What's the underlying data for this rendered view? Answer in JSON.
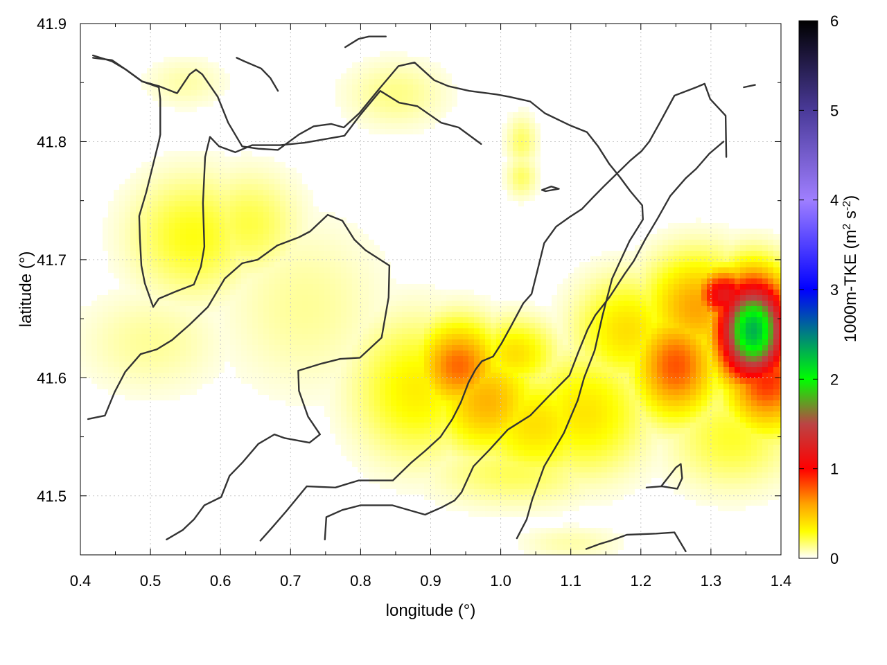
{
  "chart_data": {
    "type": "heatmap",
    "title": "",
    "xlabel": "longitude (°)",
    "ylabel": "latitude (°)",
    "colorbar_label": "1000m-TKE (m² s⁻²)",
    "colorbar_label_parts": {
      "prefix": "1000m-TKE (m",
      "sup1": "2",
      "mid": " s",
      "sup2": "-2",
      "suffix": ")"
    },
    "xlim": [
      0.4,
      1.4
    ],
    "ylim": [
      41.45,
      41.9
    ],
    "zlim": [
      0,
      6
    ],
    "x_ticks": [
      0.4,
      0.5,
      0.6,
      0.7,
      0.8,
      0.9,
      1.0,
      1.1,
      1.2,
      1.3,
      1.4
    ],
    "x_tick_labels": [
      "0.4",
      "0.5",
      "0.6",
      "0.7",
      "0.8",
      "0.9",
      "1.0",
      "1.1",
      "1.2",
      "1.3",
      "1.4"
    ],
    "y_ticks": [
      41.5,
      41.6,
      41.7,
      41.8,
      41.9
    ],
    "y_tick_labels": [
      "41.5",
      "41.6",
      "41.7",
      "41.8",
      "41.9"
    ],
    "colorbar_ticks": [
      0,
      1,
      2,
      3,
      4,
      5,
      6
    ],
    "colorbar_tick_labels": [
      "0",
      "1",
      "2",
      "3",
      "4",
      "5",
      "6"
    ],
    "grid": true,
    "palette": [
      {
        "v": 0.0,
        "color": "#ffffff"
      },
      {
        "v": 0.3,
        "color": "#ffff00"
      },
      {
        "v": 0.6,
        "color": "#ffa500"
      },
      {
        "v": 1.0,
        "color": "#ff0000"
      },
      {
        "v": 1.5,
        "color": "#bb4444"
      },
      {
        "v": 2.0,
        "color": "#00ff00"
      },
      {
        "v": 3.0,
        "color": "#0000ff"
      },
      {
        "v": 4.0,
        "color": "#9f7fff"
      },
      {
        "v": 5.0,
        "color": "#4a3a99"
      },
      {
        "v": 6.0,
        "color": "#000000"
      }
    ],
    "tke_blobs": [
      {
        "x": 0.56,
        "y": 41.72,
        "sx": 0.06,
        "sy": 0.035,
        "v": 0.28
      },
      {
        "x": 0.64,
        "y": 41.73,
        "sx": 0.05,
        "sy": 0.03,
        "v": 0.22
      },
      {
        "x": 0.5,
        "y": 41.63,
        "sx": 0.07,
        "sy": 0.03,
        "v": 0.12
      },
      {
        "x": 0.72,
        "y": 41.66,
        "sx": 0.08,
        "sy": 0.05,
        "v": 0.12
      },
      {
        "x": 0.85,
        "y": 41.84,
        "sx": 0.05,
        "sy": 0.02,
        "v": 0.14
      },
      {
        "x": 0.55,
        "y": 41.85,
        "sx": 0.04,
        "sy": 0.015,
        "v": 0.1
      },
      {
        "x": 1.03,
        "y": 41.8,
        "sx": 0.015,
        "sy": 0.015,
        "v": 0.18
      },
      {
        "x": 1.03,
        "y": 41.77,
        "sx": 0.015,
        "sy": 0.012,
        "v": 0.18
      },
      {
        "x": 0.88,
        "y": 41.59,
        "sx": 0.06,
        "sy": 0.04,
        "v": 0.35
      },
      {
        "x": 0.94,
        "y": 41.61,
        "sx": 0.04,
        "sy": 0.025,
        "v": 0.75
      },
      {
        "x": 0.98,
        "y": 41.58,
        "sx": 0.05,
        "sy": 0.03,
        "v": 0.55
      },
      {
        "x": 1.02,
        "y": 41.62,
        "sx": 0.04,
        "sy": 0.02,
        "v": 0.4
      },
      {
        "x": 1.05,
        "y": 41.56,
        "sx": 0.06,
        "sy": 0.03,
        "v": 0.4
      },
      {
        "x": 1.12,
        "y": 41.57,
        "sx": 0.06,
        "sy": 0.035,
        "v": 0.38
      },
      {
        "x": 1.02,
        "y": 41.52,
        "sx": 0.08,
        "sy": 0.02,
        "v": 0.2
      },
      {
        "x": 1.18,
        "y": 41.64,
        "sx": 0.05,
        "sy": 0.03,
        "v": 0.4
      },
      {
        "x": 1.25,
        "y": 41.61,
        "sx": 0.04,
        "sy": 0.03,
        "v": 0.8
      },
      {
        "x": 1.28,
        "y": 41.66,
        "sx": 0.05,
        "sy": 0.03,
        "v": 0.6
      },
      {
        "x": 1.32,
        "y": 41.67,
        "sx": 0.03,
        "sy": 0.015,
        "v": 1.2
      },
      {
        "x": 1.36,
        "y": 41.64,
        "sx": 0.035,
        "sy": 0.03,
        "v": 2.3
      },
      {
        "x": 1.38,
        "y": 41.6,
        "sx": 0.04,
        "sy": 0.03,
        "v": 0.9
      },
      {
        "x": 1.33,
        "y": 41.55,
        "sx": 0.06,
        "sy": 0.03,
        "v": 0.25
      },
      {
        "x": 1.1,
        "y": 41.46,
        "sx": 0.05,
        "sy": 0.01,
        "v": 0.1
      }
    ],
    "ridge_lines": [
      [
        [
          0.418,
          41.873
        ],
        [
          0.445,
          41.868
        ],
        [
          0.465,
          41.861
        ],
        [
          0.488,
          41.851
        ],
        [
          0.512,
          41.847
        ],
        [
          0.538,
          41.841
        ],
        [
          0.556,
          41.857
        ],
        [
          0.565,
          41.861
        ],
        [
          0.574,
          41.857
        ],
        [
          0.596,
          41.838
        ],
        [
          0.611,
          41.816
        ],
        [
          0.631,
          41.796
        ],
        [
          0.654,
          41.794
        ],
        [
          0.682,
          41.793
        ],
        [
          0.712,
          41.806
        ],
        [
          0.733,
          41.813
        ],
        [
          0.758,
          41.815
        ],
        [
          0.776,
          41.812
        ],
        [
          0.798,
          41.824
        ],
        [
          0.827,
          41.845
        ],
        [
          0.854,
          41.864
        ],
        [
          0.877,
          41.867
        ],
        [
          0.905,
          41.852
        ],
        [
          0.925,
          41.847
        ],
        [
          0.955,
          41.843
        ],
        [
          0.994,
          41.84
        ],
        [
          1.012,
          41.838
        ],
        [
          1.042,
          41.834
        ],
        [
          1.063,
          41.824
        ],
        [
          1.098,
          41.814
        ],
        [
          1.123,
          41.808
        ],
        [
          1.139,
          41.796
        ],
        [
          1.155,
          41.781
        ],
        [
          1.17,
          41.77
        ],
        [
          1.185,
          41.758
        ],
        [
          1.202,
          41.746
        ],
        [
          1.203,
          41.734
        ],
        [
          1.184,
          41.716
        ],
        [
          1.159,
          41.684
        ],
        [
          1.145,
          41.652
        ],
        [
          1.134,
          41.623
        ],
        [
          1.119,
          41.6
        ],
        [
          1.11,
          41.581
        ],
        [
          1.09,
          41.553
        ],
        [
          1.062,
          41.525
        ],
        [
          1.045,
          41.497
        ],
        [
          1.037,
          41.48
        ],
        [
          1.023,
          41.464
        ]
      ],
      [
        [
          0.418,
          41.871
        ],
        [
          0.445,
          41.869
        ],
        [
          0.465,
          41.861
        ],
        [
          0.488,
          41.851
        ],
        [
          0.512,
          41.846
        ],
        [
          0.514,
          41.836
        ],
        [
          0.514,
          41.806
        ],
        [
          0.512,
          41.8
        ],
        [
          0.494,
          41.757
        ],
        [
          0.484,
          41.737
        ],
        [
          0.485,
          41.718
        ],
        [
          0.487,
          41.695
        ],
        [
          0.492,
          41.68
        ],
        [
          0.504,
          41.66
        ],
        [
          0.512,
          41.667
        ],
        [
          0.536,
          41.673
        ],
        [
          0.562,
          41.679
        ],
        [
          0.572,
          41.694
        ],
        [
          0.577,
          41.711
        ],
        [
          0.575,
          41.748
        ],
        [
          0.578,
          41.787
        ],
        [
          0.585,
          41.804
        ],
        [
          0.598,
          41.796
        ],
        [
          0.621,
          41.791
        ],
        [
          0.645,
          41.797
        ],
        [
          0.685,
          41.797
        ],
        [
          0.72,
          41.799
        ],
        [
          0.777,
          41.805
        ],
        [
          0.8,
          41.823
        ],
        [
          0.828,
          41.843
        ],
        [
          0.855,
          41.833
        ],
        [
          0.881,
          41.83
        ],
        [
          0.915,
          41.816
        ],
        [
          0.94,
          41.812
        ],
        [
          0.972,
          41.798
        ]
      ],
      [
        [
          0.411,
          41.565
        ],
        [
          0.435,
          41.568
        ],
        [
          0.449,
          41.588
        ],
        [
          0.464,
          41.605
        ],
        [
          0.486,
          41.62
        ],
        [
          0.509,
          41.624
        ],
        [
          0.531,
          41.632
        ],
        [
          0.556,
          41.645
        ],
        [
          0.582,
          41.66
        ],
        [
          0.606,
          41.684
        ],
        [
          0.631,
          41.697
        ],
        [
          0.653,
          41.7
        ],
        [
          0.681,
          41.712
        ],
        [
          0.712,
          41.719
        ],
        [
          0.728,
          41.724
        ],
        [
          0.753,
          41.738
        ],
        [
          0.774,
          41.733
        ],
        [
          0.791,
          41.717
        ],
        [
          0.807,
          41.708
        ],
        [
          0.841,
          41.695
        ],
        [
          0.84,
          41.668
        ],
        [
          0.83,
          41.634
        ],
        [
          0.799,
          41.617
        ],
        [
          0.771,
          41.616
        ],
        [
          0.744,
          41.612
        ],
        [
          0.711,
          41.606
        ],
        [
          0.712,
          41.589
        ],
        [
          0.725,
          41.567
        ],
        [
          0.742,
          41.552
        ],
        [
          0.727,
          41.545
        ],
        [
          0.691,
          41.549
        ],
        [
          0.677,
          41.552
        ],
        [
          0.654,
          41.544
        ],
        [
          0.631,
          41.528
        ],
        [
          0.613,
          41.517
        ],
        [
          0.601,
          41.499
        ],
        [
          0.577,
          41.492
        ],
        [
          0.562,
          41.48
        ],
        [
          0.546,
          41.471
        ],
        [
          0.523,
          41.463
        ]
      ],
      [
        [
          0.657,
          41.462
        ],
        [
          0.675,
          41.474
        ],
        [
          0.694,
          41.487
        ],
        [
          0.723,
          41.508
        ],
        [
          0.764,
          41.507
        ],
        [
          0.797,
          41.513
        ],
        [
          0.846,
          41.513
        ],
        [
          0.872,
          41.528
        ],
        [
          0.892,
          41.538
        ],
        [
          0.914,
          41.55
        ],
        [
          0.931,
          41.565
        ],
        [
          0.943,
          41.579
        ],
        [
          0.954,
          41.596
        ],
        [
          0.964,
          41.607
        ],
        [
          0.973,
          41.614
        ],
        [
          0.989,
          41.618
        ],
        [
          1.001,
          41.629
        ],
        [
          1.014,
          41.643
        ],
        [
          1.032,
          41.663
        ],
        [
          1.044,
          41.671
        ],
        [
          1.052,
          41.69
        ],
        [
          1.062,
          41.714
        ],
        [
          1.079,
          41.728
        ],
        [
          1.098,
          41.736
        ],
        [
          1.116,
          41.743
        ],
        [
          1.132,
          41.753
        ],
        [
          1.147,
          41.762
        ],
        [
          1.185,
          41.784
        ],
        [
          1.201,
          41.792
        ],
        [
          1.212,
          41.8
        ],
        [
          1.227,
          41.816
        ],
        [
          1.248,
          41.839
        ],
        [
          1.279,
          41.846
        ],
        [
          1.291,
          41.849
        ],
        [
          1.299,
          41.836
        ],
        [
          1.321,
          41.822
        ],
        [
          1.322,
          41.787
        ]
      ],
      [
        [
          0.749,
          41.463
        ],
        [
          0.751,
          41.482
        ],
        [
          0.774,
          41.488
        ],
        [
          0.8,
          41.492
        ],
        [
          0.845,
          41.492
        ],
        [
          0.892,
          41.484
        ],
        [
          0.915,
          41.49
        ],
        [
          0.934,
          41.496
        ],
        [
          0.944,
          41.503
        ],
        [
          0.961,
          41.525
        ],
        [
          0.984,
          41.539
        ],
        [
          1.01,
          41.556
        ],
        [
          1.042,
          41.568
        ],
        [
          1.068,
          41.584
        ],
        [
          1.098,
          41.602
        ],
        [
          1.111,
          41.622
        ],
        [
          1.124,
          41.641
        ],
        [
          1.135,
          41.653
        ],
        [
          1.155,
          41.668
        ],
        [
          1.177,
          41.688
        ],
        [
          1.19,
          41.699
        ],
        [
          1.207,
          41.718
        ],
        [
          1.224,
          41.735
        ],
        [
          1.242,
          41.754
        ],
        [
          1.264,
          41.769
        ],
        [
          1.279,
          41.777
        ],
        [
          1.298,
          41.79
        ],
        [
          1.318,
          41.8
        ]
      ],
      [
        [
          1.122,
          41.455
        ],
        [
          1.14,
          41.459
        ],
        [
          1.157,
          41.462
        ],
        [
          1.18,
          41.467
        ],
        [
          1.222,
          41.468
        ],
        [
          1.248,
          41.469
        ],
        [
          1.264,
          41.453
        ]
      ],
      [
        [
          1.059,
          41.759
        ],
        [
          1.072,
          41.762
        ],
        [
          1.083,
          41.76
        ],
        [
          1.064,
          41.758
        ],
        [
          1.059,
          41.759
        ]
      ],
      [
        [
          1.208,
          41.507
        ],
        [
          1.23,
          41.508
        ],
        [
          1.252,
          41.506
        ],
        [
          1.259,
          41.515
        ],
        [
          1.257,
          41.527
        ],
        [
          1.25,
          41.524
        ],
        [
          1.229,
          41.508
        ]
      ],
      [
        [
          0.623,
          41.871
        ],
        [
          0.634,
          41.868
        ],
        [
          0.658,
          41.862
        ],
        [
          0.671,
          41.854
        ],
        [
          0.682,
          41.843
        ]
      ],
      [
        [
          0.778,
          41.88
        ],
        [
          0.797,
          41.887
        ],
        [
          0.812,
          41.889
        ],
        [
          0.836,
          41.889
        ]
      ],
      [
        [
          1.347,
          41.846
        ],
        [
          1.363,
          41.848
        ]
      ]
    ]
  }
}
